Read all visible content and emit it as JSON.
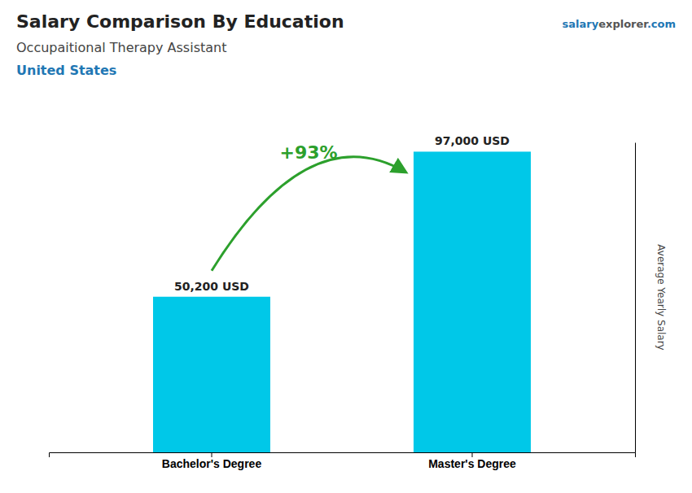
{
  "chart_data": {
    "type": "bar",
    "title": "Salary Comparison By Education",
    "subtitle": "Occupaitional Therapy Assistant",
    "country": "United States",
    "watermark": [
      "salary",
      "explorer",
      ".com"
    ],
    "y_label": "Average Yearly Salary",
    "categories": [
      "Bachelor's Degree",
      "Master's Degree"
    ],
    "values": [
      50200,
      97000
    ],
    "value_labels": [
      "50,200 USD",
      "97,000 USD"
    ],
    "annotation": "+93%",
    "color": "#00C8E8",
    "ylim": [
      0,
      100000
    ],
    "tick_labels": "x",
    "grid": false,
    "data_labels": true
  }
}
